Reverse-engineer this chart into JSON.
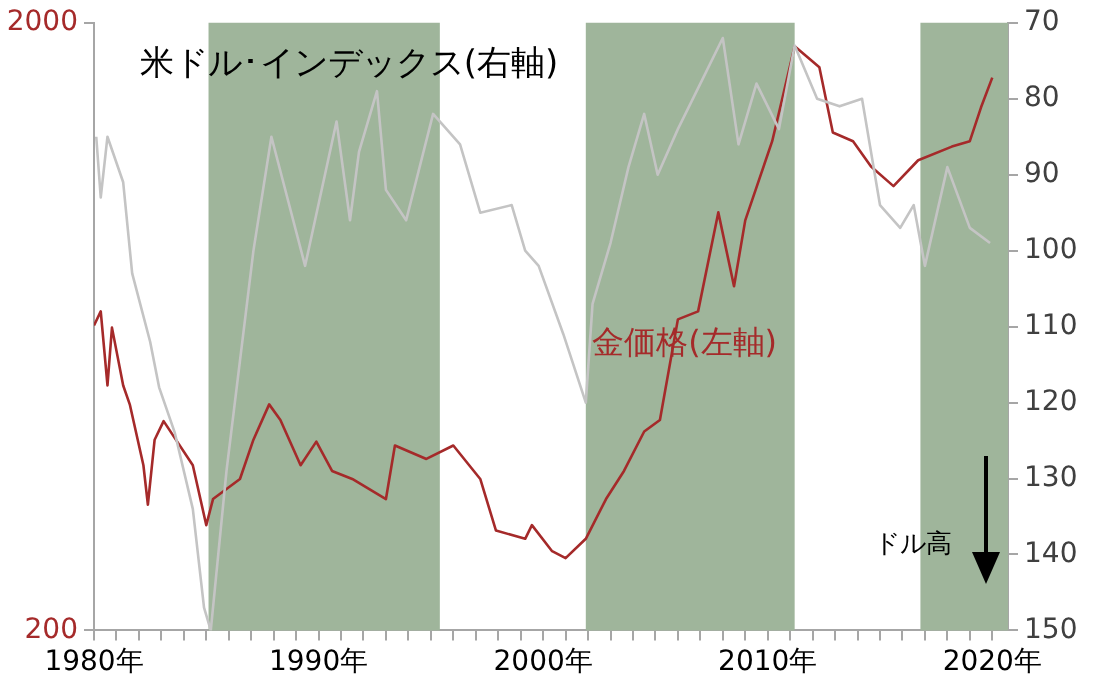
{
  "chart_data": {
    "type": "line",
    "series": [
      {
        "name": "米ドル･インデックス(右軸)",
        "color": "#c4c4c4",
        "axis": "y2",
        "x": [
          1980.1,
          1980.3,
          1980.6,
          1981.3,
          1981.7,
          1982.5,
          1982.9,
          1983.6,
          1984.4,
          1984.9,
          1985.2,
          1985.9,
          1987.1,
          1987.9,
          1989.4,
          1990.8,
          1991.4,
          1991.8,
          1992.6,
          1993.0,
          1993.9,
          1995.1,
          1996.3,
          1997.2,
          1998.6,
          1999.2,
          1999.8,
          2000.9,
          2001.9,
          2002.2,
          2003.0,
          2003.8,
          2004.5,
          2005.1,
          2006.0,
          2007.0,
          2008.0,
          2008.7,
          2009.5,
          2010.5,
          2011.2,
          2012.2,
          2013.2,
          2014.2,
          2015.0,
          2015.9,
          2016.5,
          2017.0,
          2018.0,
          2019.0,
          2019.9
        ],
        "values": [
          85,
          93,
          85,
          91,
          103,
          112,
          118,
          124,
          134,
          147,
          150,
          129,
          100,
          85,
          102,
          83,
          96,
          87,
          79,
          92,
          96,
          82,
          86,
          95,
          94,
          100,
          102,
          111,
          120,
          107,
          99,
          89,
          82,
          90,
          84,
          78,
          72,
          86,
          78,
          84,
          73,
          80,
          81,
          80,
          94,
          97,
          94,
          102,
          89,
          97,
          99
        ]
      },
      {
        "name": "金価格(左軸)",
        "color": "#a52a2a",
        "x": [
          1980.0,
          1980.3,
          1980.6,
          1980.8,
          1981.3,
          1981.6,
          1982.2,
          1982.4,
          1982.7,
          1983.1,
          1984.4,
          1985.0,
          1985.3,
          1986.5,
          1987.1,
          1987.8,
          1988.3,
          1989.2,
          1989.9,
          1990.6,
          1991.5,
          1993.0,
          1993.4,
          1994.8,
          1996.0,
          1997.2,
          1997.9,
          1999.2,
          1999.5,
          2000.4,
          2001.0,
          2001.9,
          2002.8,
          2003.6,
          2004.5,
          2005.2,
          2006.0,
          2006.9,
          2007.8,
          2008.5,
          2009.0,
          2010.2,
          2011.2,
          2012.3,
          2012.9,
          2013.8,
          2014.6,
          2015.6,
          2016.7,
          2018.2,
          2019.0,
          2019.5,
          2020.0
        ],
        "values": [
          635,
          670,
          506,
          630,
          506,
          470,
          374,
          322,
          412,
          442,
          374,
          298,
          329,
          355,
          412,
          471,
          444,
          374,
          409,
          366,
          355,
          329,
          403,
          383,
          403,
          355,
          292,
          283,
          298,
          270,
          263,
          283,
          329,
          366,
          425,
          444,
          650,
          670,
          975,
          737,
          946,
          1277,
          1830,
          1690,
          1320,
          1277,
          1160,
          1077,
          1188,
          1251,
          1277,
          1452,
          1625
        ]
      }
    ],
    "xlim": [
      1980,
      2020.7
    ],
    "xticks": [
      {
        "value": 1980,
        "label": "1980年"
      },
      {
        "value": 1981,
        "label": null
      },
      {
        "value": 1982,
        "label": null
      },
      {
        "value": 1983,
        "label": null
      },
      {
        "value": 1984,
        "label": null
      },
      {
        "value": 1985,
        "label": null
      },
      {
        "value": 1986,
        "label": null
      },
      {
        "value": 1987,
        "label": null
      },
      {
        "value": 1988,
        "label": null
      },
      {
        "value": 1989,
        "label": null
      },
      {
        "value": 1990,
        "label": "1990年"
      },
      {
        "value": 1991,
        "label": null
      },
      {
        "value": 1992,
        "label": null
      },
      {
        "value": 1993,
        "label": null
      },
      {
        "value": 1994,
        "label": null
      },
      {
        "value": 1995,
        "label": null
      },
      {
        "value": 1996,
        "label": null
      },
      {
        "value": 1997,
        "label": null
      },
      {
        "value": 1998,
        "label": null
      },
      {
        "value": 1999,
        "label": null
      },
      {
        "value": 2000,
        "label": "2000年"
      },
      {
        "value": 2001,
        "label": null
      },
      {
        "value": 2002,
        "label": null
      },
      {
        "value": 2003,
        "label": null
      },
      {
        "value": 2004,
        "label": null
      },
      {
        "value": 2005,
        "label": null
      },
      {
        "value": 2006,
        "label": null
      },
      {
        "value": 2007,
        "label": null
      },
      {
        "value": 2008,
        "label": null
      },
      {
        "value": 2009,
        "label": null
      },
      {
        "value": 2010,
        "label": "2010年"
      },
      {
        "value": 2011,
        "label": null
      },
      {
        "value": 2012,
        "label": null
      },
      {
        "value": 2013,
        "label": null
      },
      {
        "value": 2014,
        "label": null
      },
      {
        "value": 2015,
        "label": null
      },
      {
        "value": 2016,
        "label": null
      },
      {
        "value": 2017,
        "label": null
      },
      {
        "value": 2018,
        "label": null
      },
      {
        "value": 2019,
        "label": null
      },
      {
        "value": 2020,
        "label": "2020年"
      }
    ],
    "ylim": [
      200,
      2000
    ],
    "yticks": [
      200,
      2000
    ],
    "log": "y",
    "y2lim": [
      150,
      70
    ],
    "y2ticks": [
      70,
      80,
      90,
      100,
      110,
      120,
      130,
      140,
      150
    ],
    "bands": [
      {
        "axis": "x",
        "from": 1985.1,
        "to": 1995.4,
        "color": "#9fb59b"
      },
      {
        "axis": "x",
        "from": 2001.9,
        "to": 2011.2,
        "color": "#9fb59b"
      },
      {
        "axis": "x",
        "from": 2016.8,
        "to": 2020.7,
        "color": "#9fb59b"
      }
    ],
    "annotations": [
      "ドル高"
    ],
    "grid": false,
    "legend": false,
    "marker": "none",
    "line_style": "solid"
  }
}
